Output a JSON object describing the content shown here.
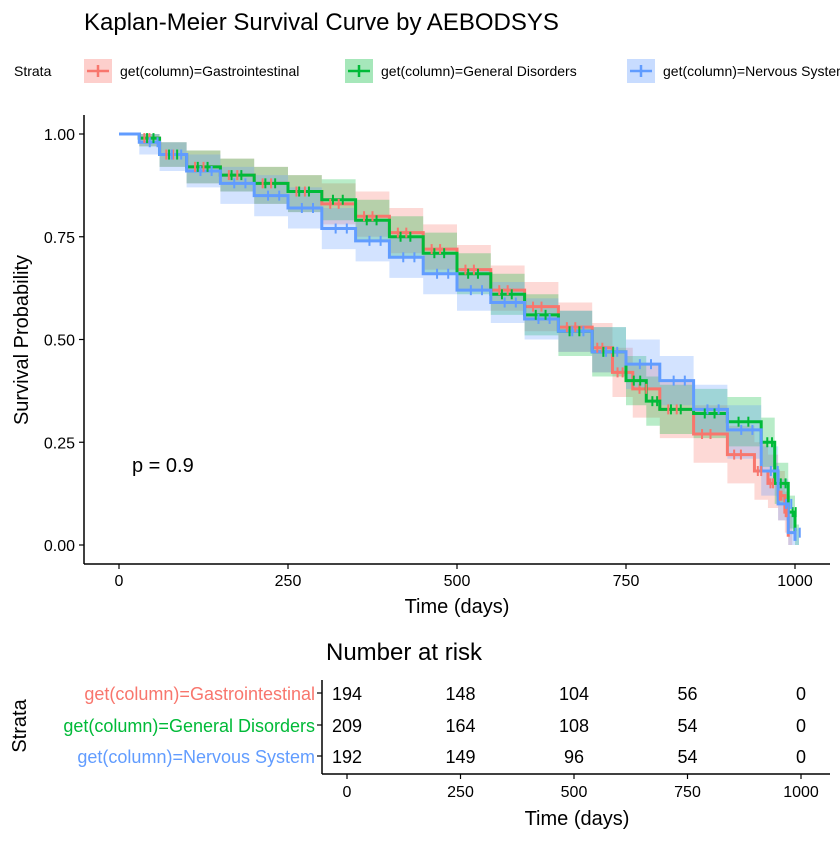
{
  "chart_data": {
    "type": "line",
    "title": "Kaplan-Meier Survival Curve by AEBODSYS",
    "xlabel": "Time (days)",
    "ylabel": "Survival Probability",
    "xlim": [
      0,
      1000
    ],
    "ylim": [
      0,
      1
    ],
    "x_ticks": [
      "0",
      "250",
      "500",
      "750",
      "1000"
    ],
    "y_ticks": [
      "0.00",
      "0.25",
      "0.50",
      "0.75",
      "1.00"
    ],
    "grid": false,
    "legend_position": "top",
    "legend_title": "Strata",
    "annotation": "p = 0.9",
    "series": [
      {
        "name": "get(column)=Gastrointestinal",
        "color": "#F8766D",
        "x": [
          0,
          30,
          60,
          100,
          150,
          200,
          250,
          300,
          350,
          400,
          450,
          500,
          550,
          600,
          650,
          700,
          730,
          760,
          800,
          850,
          900,
          940,
          960,
          975,
          985,
          990
        ],
        "y": [
          1.0,
          0.99,
          0.95,
          0.92,
          0.9,
          0.88,
          0.86,
          0.83,
          0.8,
          0.76,
          0.72,
          0.67,
          0.62,
          0.58,
          0.53,
          0.48,
          0.42,
          0.38,
          0.33,
          0.27,
          0.22,
          0.18,
          0.15,
          0.12,
          0.08,
          0.02
        ],
        "lower": [
          1.0,
          0.97,
          0.92,
          0.88,
          0.86,
          0.83,
          0.81,
          0.78,
          0.75,
          0.71,
          0.67,
          0.62,
          0.57,
          0.52,
          0.47,
          0.42,
          0.36,
          0.31,
          0.26,
          0.2,
          0.15,
          0.11,
          0.09,
          0.06,
          0.03,
          0.0
        ],
        "upper": [
          1.0,
          1.0,
          0.98,
          0.96,
          0.94,
          0.92,
          0.9,
          0.88,
          0.86,
          0.82,
          0.78,
          0.73,
          0.68,
          0.64,
          0.59,
          0.54,
          0.48,
          0.44,
          0.4,
          0.34,
          0.29,
          0.25,
          0.22,
          0.18,
          0.13,
          0.07
        ]
      },
      {
        "name": "get(column)=General Disorders",
        "color": "#00BA38",
        "x": [
          0,
          30,
          60,
          100,
          150,
          200,
          250,
          300,
          350,
          400,
          450,
          500,
          550,
          600,
          650,
          700,
          750,
          780,
          800,
          850,
          900,
          950,
          970,
          990,
          1000
        ],
        "y": [
          1.0,
          0.99,
          0.95,
          0.92,
          0.9,
          0.88,
          0.86,
          0.84,
          0.79,
          0.75,
          0.71,
          0.66,
          0.61,
          0.56,
          0.52,
          0.47,
          0.4,
          0.35,
          0.33,
          0.32,
          0.3,
          0.25,
          0.15,
          0.08,
          0.02
        ],
        "lower": [
          1.0,
          0.97,
          0.92,
          0.88,
          0.86,
          0.83,
          0.81,
          0.79,
          0.74,
          0.7,
          0.66,
          0.61,
          0.56,
          0.51,
          0.46,
          0.41,
          0.34,
          0.29,
          0.27,
          0.26,
          0.24,
          0.19,
          0.1,
          0.04,
          0.0
        ],
        "upper": [
          1.0,
          1.0,
          0.98,
          0.96,
          0.94,
          0.92,
          0.9,
          0.89,
          0.84,
          0.8,
          0.76,
          0.71,
          0.66,
          0.61,
          0.57,
          0.53,
          0.46,
          0.41,
          0.39,
          0.38,
          0.36,
          0.31,
          0.2,
          0.12,
          0.05
        ]
      },
      {
        "name": "get(column)=Nervous System",
        "color": "#619CFF",
        "x": [
          0,
          30,
          60,
          100,
          150,
          200,
          250,
          300,
          350,
          400,
          450,
          500,
          550,
          600,
          650,
          700,
          750,
          800,
          850,
          900,
          950,
          975,
          990,
          1000
        ],
        "y": [
          1.0,
          0.98,
          0.95,
          0.91,
          0.88,
          0.85,
          0.82,
          0.77,
          0.74,
          0.7,
          0.66,
          0.62,
          0.59,
          0.55,
          0.52,
          0.47,
          0.44,
          0.4,
          0.33,
          0.28,
          0.18,
          0.1,
          0.03,
          0.01
        ],
        "lower": [
          1.0,
          0.95,
          0.91,
          0.87,
          0.83,
          0.8,
          0.77,
          0.72,
          0.69,
          0.65,
          0.61,
          0.57,
          0.54,
          0.5,
          0.47,
          0.42,
          0.38,
          0.34,
          0.27,
          0.21,
          0.12,
          0.06,
          0.0,
          0.0
        ],
        "upper": [
          1.0,
          1.0,
          0.98,
          0.95,
          0.92,
          0.9,
          0.87,
          0.82,
          0.79,
          0.75,
          0.71,
          0.67,
          0.64,
          0.6,
          0.57,
          0.53,
          0.5,
          0.46,
          0.39,
          0.34,
          0.24,
          0.16,
          0.08,
          0.04
        ]
      }
    ],
    "risk_table": {
      "title": "Number at risk",
      "ylabel": "Strata",
      "xlabel": "Time (days)",
      "times": [
        0,
        250,
        500,
        750,
        1000
      ],
      "x_ticks": [
        "0",
        "250",
        "500",
        "750",
        "1000"
      ],
      "rows": [
        {
          "name": "get(column)=Gastrointestinal",
          "color": "#F8766D",
          "counts": [
            "194",
            "148",
            "104",
            "56",
            "0"
          ]
        },
        {
          "name": "get(column)=General Disorders",
          "color": "#00BA38",
          "counts": [
            "209",
            "164",
            "108",
            "54",
            "0"
          ]
        },
        {
          "name": "get(column)=Nervous System",
          "color": "#619CFF",
          "counts": [
            "192",
            "149",
            "96",
            "54",
            "0"
          ]
        }
      ]
    }
  }
}
